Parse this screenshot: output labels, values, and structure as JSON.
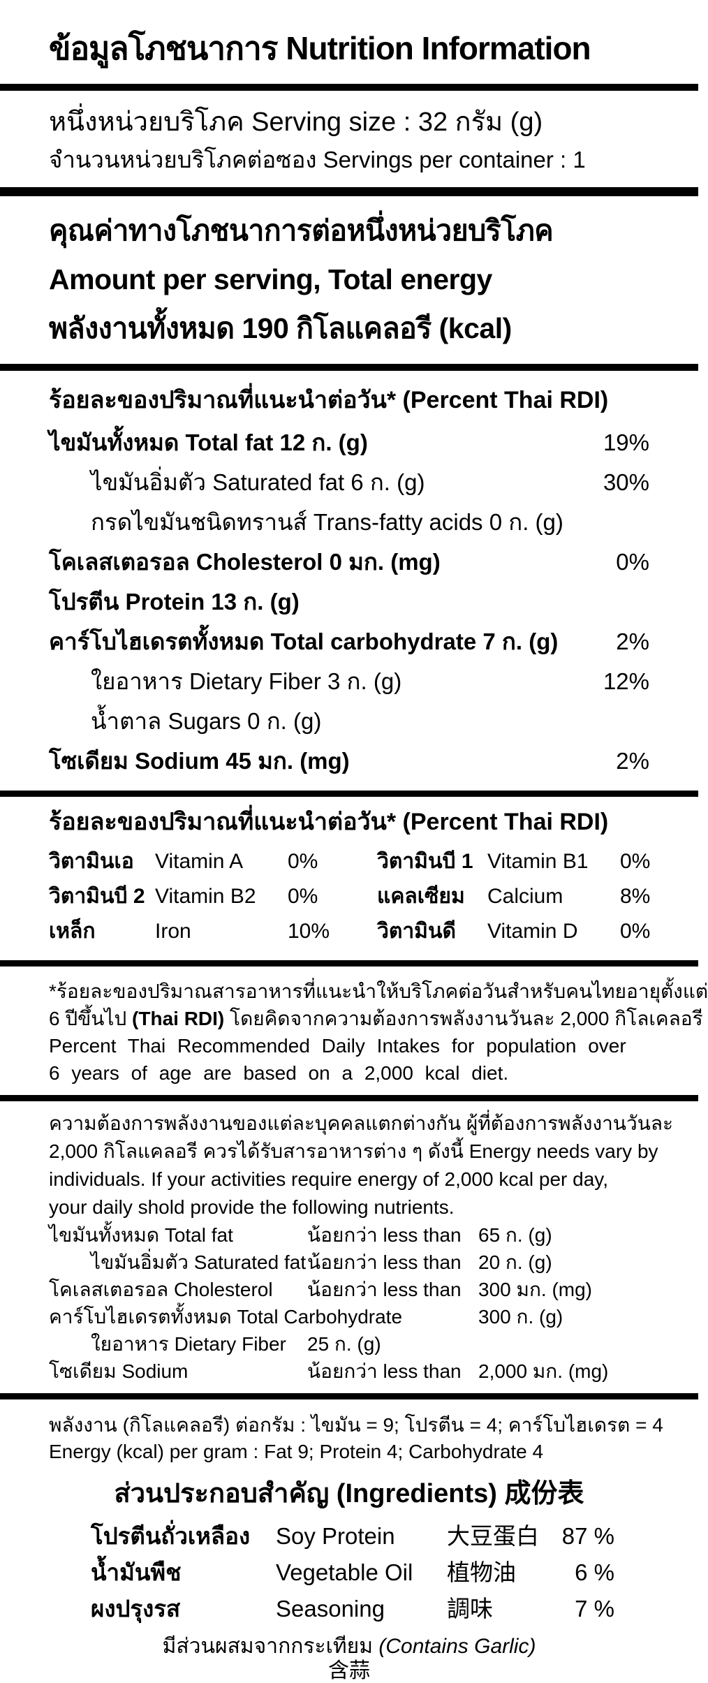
{
  "title": "ข้อมูลโภชนาการ Nutrition Information",
  "serving": {
    "size_line": "หนึ่งหน่วยบริโภค Serving size : 32 กรัม (g)",
    "per_container_line": "จำนวนหน่วยบริโภคต่อซอง Servings per container : 1"
  },
  "energy": {
    "line1": "คุณค่าทางโภชนาการต่อหนึ่งหน่วยบริโภค",
    "line2": "Amount per serving, Total energy",
    "line3": "พลังงานทั้งหมด 190 กิโลแคลอรี (kcal)"
  },
  "rdi_header": "ร้อยละของปริมาณที่แนะนำต่อวัน* (Percent Thai RDI)",
  "facts": {
    "rows": [
      {
        "name": "ไขมันทั้งหมด Total fat 12 ก. (g)",
        "pct": "19%"
      },
      {
        "name": "ไขมันอิ่มตัว Saturated fat 6 ก. (g)",
        "pct": "30%"
      },
      {
        "name": "กรดไขมันชนิดทรานส์ Trans-fatty acids 0 ก. (g)",
        "pct": ""
      },
      {
        "name": "โคเลสเตอรอล Cholesterol 0 มก. (mg)",
        "pct": "0%"
      },
      {
        "name": "โปรตีน Protein 13 ก. (g)",
        "pct": ""
      },
      {
        "name": "คาร์โบไฮเดรตทั้งหมด Total carbohydrate 7 ก. (g)",
        "pct": "2%"
      },
      {
        "name": "ใยอาหาร Dietary Fiber 3 ก. (g)",
        "pct": "12%"
      },
      {
        "name": "น้ำตาล Sugars 0 ก. (g)",
        "pct": ""
      },
      {
        "name": "โซเดียม Sodium 45 มก. (mg)",
        "pct": "2%"
      }
    ]
  },
  "vitamins": {
    "header": "ร้อยละของปริมาณที่แนะนำต่อวัน* (Percent Thai RDI)",
    "rows": [
      {
        "t1": "วิตามินเอ",
        "e1": "Vitamin A",
        "p1": "0%",
        "t2": "วิตามินบี 1",
        "e2": "Vitamin B1",
        "p2": "0%"
      },
      {
        "t1": "วิตามินบี 2",
        "e1": "Vitamin B2",
        "p1": "0%",
        "t2": "แคลเซียม",
        "e2": "Calcium",
        "p2": "8%"
      },
      {
        "t1": "เหล็ก",
        "e1": "Iron",
        "p1": "10%",
        "t2": "วิตามินดี",
        "e2": "Vitamin D",
        "p2": "0%"
      }
    ]
  },
  "footnote": {
    "line1": "*ร้อยละของปริมาณสารอาหารที่แนะนำให้บริโภคต่อวันสำหรับคนไทยอายุตั้งแต่",
    "line2_pre": "6 ปีขึ้นไป ",
    "line2_bold": "(Thai RDI)",
    "line2_post": " โดยคิดจากความต้องการพลังงานวันละ 2,000 กิโลเคลอรี",
    "line3": "Percent Thai Recommended Daily Intakes for population over",
    "line4": "6 years of age are based on a 2,000 kcal diet."
  },
  "needs": {
    "para_line1": "ความต้องการพลังงานของแต่ละบุคคลแตกต่างกัน ผู้ที่ต้องการพลังงานวันละ",
    "para_line2": "2,000 กิโลแคลอรี ควรได้รับสารอาหารต่าง ๆ ดังนี้ Energy needs vary by",
    "para_line3": "individuals. If your activities require energy of 2,000 kcal per day,",
    "para_line4": "your daily shold provide the following nutrients.",
    "rows": [
      {
        "name": "ไขมันทั้งหมด Total fat",
        "mid": "น้อยกว่า less than",
        "amt": "65 ก. (g)"
      },
      {
        "name": "ไขมันอิ่มตัว Saturated fat",
        "mid": "น้อยกว่า less than",
        "amt": "20 ก. (g)"
      },
      {
        "name": "โคเลสเตอรอล Cholesterol",
        "mid": "น้อยกว่า less than",
        "amt": "300 มก. (mg)"
      },
      {
        "name": "คาร์โบไฮเดรตทั้งหมด Total Carbohydrate",
        "mid": "",
        "amt": "300 ก. (g)"
      },
      {
        "name": "ใยอาหาร Dietary Fiber",
        "mid": "25 ก. (g)",
        "amt": ""
      },
      {
        "name": "โซเดียม Sodium",
        "mid": "น้อยกว่า less than",
        "amt": "2,000 มก. (mg)"
      }
    ]
  },
  "energy_per_gram": {
    "line_th": "พลังงาน (กิโลแคลอรี) ต่อกรัม : ไขมัน = 9; โปรตีน = 4; คาร์โบไฮเดรต = 4",
    "line_en": "Energy (kcal) per gram : Fat 9; Protein 4; Carbohydrate 4"
  },
  "ingredients": {
    "header": "ส่วนประกอบสำคัญ (Ingredients) 成份表",
    "rows": [
      {
        "th": "โปรตีนถั่วเหลือง",
        "en": "Soy Protein",
        "cn": "大豆蛋白",
        "pct": "87 %"
      },
      {
        "th": "น้ำมันพืช",
        "en": "Vegetable Oil",
        "cn": "植物油",
        "pct": "6 %"
      },
      {
        "th": "ผงปรุงรส",
        "en": "Seasoning",
        "cn": "調味",
        "pct": "7 %"
      }
    ],
    "garlic_th": "มีส่วนผสมจากกระเทียม ",
    "garlic_en": "(Contains Garlic)",
    "garlic_cn": "含蒜"
  }
}
